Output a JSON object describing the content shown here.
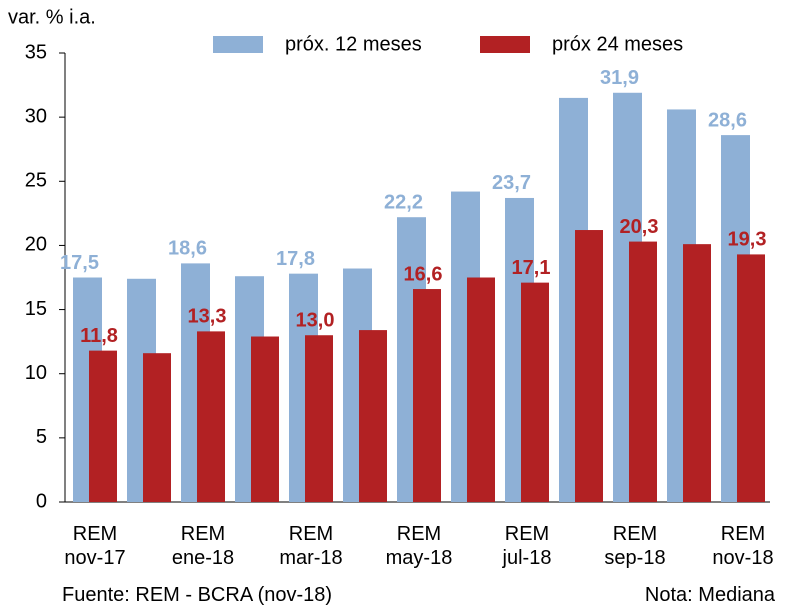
{
  "chart_data": {
    "type": "bar",
    "y_label": "var. % i.a.",
    "categories": [
      "REM\nnov-17",
      null,
      "REM\nene-18",
      null,
      "REM\nmar-18",
      null,
      "REM\nmay-18",
      null,
      "REM\njul-18",
      null,
      "REM\nsep-18",
      null,
      "REM\nnov-18"
    ],
    "series": [
      {
        "name": "próx. 12 meses",
        "color": "#8eb0d6",
        "label_color": "#8eb0d6",
        "values": [
          17.5,
          17.4,
          18.6,
          17.6,
          17.8,
          18.2,
          22.2,
          24.2,
          23.7,
          31.5,
          31.9,
          30.6,
          28.6
        ],
        "value_labels": [
          "17,5",
          null,
          "18,6",
          null,
          "17,8",
          null,
          "22,2",
          null,
          "23,7",
          null,
          "31,9",
          null,
          "28,6"
        ]
      },
      {
        "name": "próx 24 meses",
        "color": "#b22123",
        "label_color": "#b22123",
        "values": [
          11.8,
          11.6,
          13.3,
          12.9,
          13.0,
          13.4,
          16.6,
          17.5,
          17.1,
          21.2,
          20.3,
          20.1,
          19.3
        ],
        "value_labels": [
          "11,8",
          null,
          "13,3",
          null,
          "13,0",
          null,
          "16,6",
          null,
          "17,1",
          null,
          "20,3",
          null,
          "19,3"
        ]
      }
    ],
    "ylim": [
      0,
      35
    ],
    "yticks": [
      0,
      5,
      10,
      15,
      20,
      25,
      30,
      35
    ],
    "grid": false,
    "source": "Fuente: REM - BCRA (nov-18)",
    "note": "Nota: Mediana"
  }
}
